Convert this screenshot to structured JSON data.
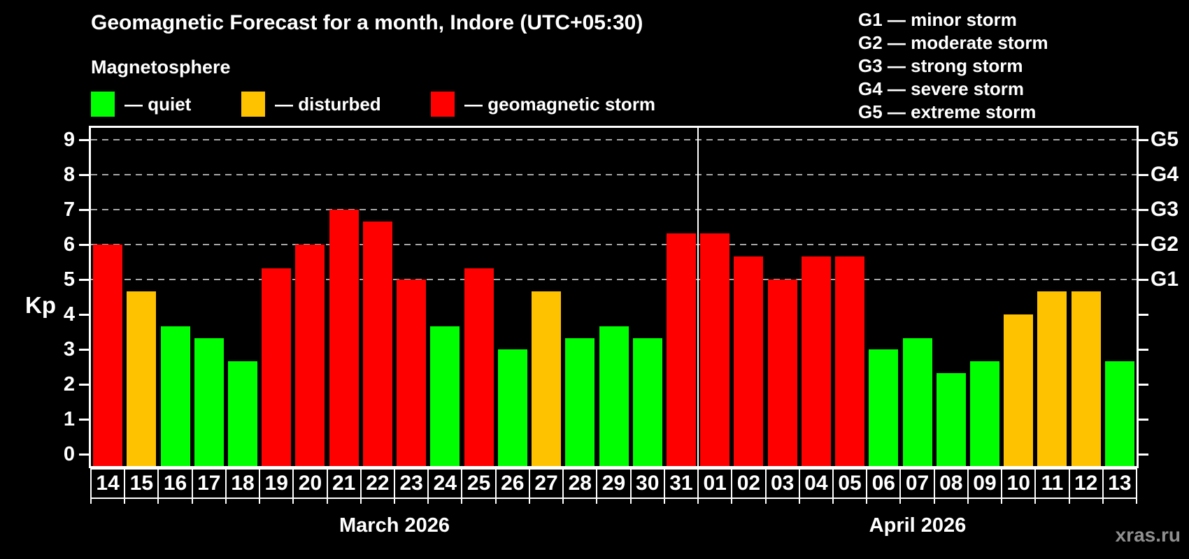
{
  "title": "Geomagnetic Forecast for a month, Indore (UTC+05:30)",
  "subtitle": "Magnetosphere",
  "watermark": "xras.ru",
  "colors": {
    "quiet": "#00ff00",
    "disturbed": "#ffc200",
    "storm": "#ff0000",
    "grid": "#a8a8a8",
    "frame": "#ffffff"
  },
  "legend": [
    {
      "status": "quiet",
      "label": "— quiet"
    },
    {
      "status": "disturbed",
      "label": "— disturbed"
    },
    {
      "status": "storm",
      "label": "— geomagnetic storm"
    }
  ],
  "g_scale_legend": [
    "G1 — minor storm",
    "G2 — moderate storm",
    "G3 — strong storm",
    "G4 — severe storm",
    "G5 — extreme storm"
  ],
  "axis": {
    "y_label": "Kp",
    "y_ticks": [
      0,
      1,
      2,
      3,
      4,
      5,
      6,
      7,
      8,
      9
    ],
    "right_labels": [
      {
        "kp": 5,
        "label": "G1"
      },
      {
        "kp": 6,
        "label": "G2"
      },
      {
        "kp": 7,
        "label": "G3"
      },
      {
        "kp": 8,
        "label": "G4"
      },
      {
        "kp": 9,
        "label": "G5"
      }
    ]
  },
  "chart_data": {
    "type": "bar",
    "title": "Geomagnetic Forecast for a month, Indore (UTC+05:30)",
    "ylabel": "Kp",
    "ylim": [
      0,
      9.3
    ],
    "grid_levels": [
      5,
      6,
      7,
      8,
      9
    ],
    "grid_style": "dashed",
    "legend_position": "top",
    "months": [
      {
        "label": "March 2026",
        "days": [
          "14",
          "15",
          "16",
          "17",
          "18",
          "19",
          "20",
          "21",
          "22",
          "23",
          "24",
          "25",
          "26",
          "27",
          "28",
          "29",
          "30",
          "31"
        ],
        "values": [
          6.0,
          4.67,
          3.67,
          3.33,
          2.67,
          5.33,
          6.0,
          7.0,
          6.67,
          5.0,
          3.67,
          5.33,
          3.0,
          4.67,
          3.33,
          3.67,
          3.33,
          6.33
        ],
        "status": [
          "storm",
          "disturbed",
          "quiet",
          "quiet",
          "quiet",
          "storm",
          "storm",
          "storm",
          "storm",
          "storm",
          "quiet",
          "storm",
          "quiet",
          "disturbed",
          "quiet",
          "quiet",
          "quiet",
          "storm"
        ]
      },
      {
        "label": "April 2026",
        "days": [
          "01",
          "02",
          "03",
          "04",
          "05",
          "06",
          "07",
          "08",
          "09",
          "10",
          "11",
          "12",
          "13"
        ],
        "values": [
          6.33,
          5.67,
          5.0,
          5.67,
          5.67,
          3.0,
          3.33,
          2.33,
          2.67,
          4.0,
          4.67,
          4.67,
          2.67
        ],
        "status": [
          "storm",
          "storm",
          "storm",
          "storm",
          "storm",
          "quiet",
          "quiet",
          "quiet",
          "quiet",
          "disturbed",
          "disturbed",
          "disturbed",
          "quiet"
        ]
      }
    ]
  }
}
